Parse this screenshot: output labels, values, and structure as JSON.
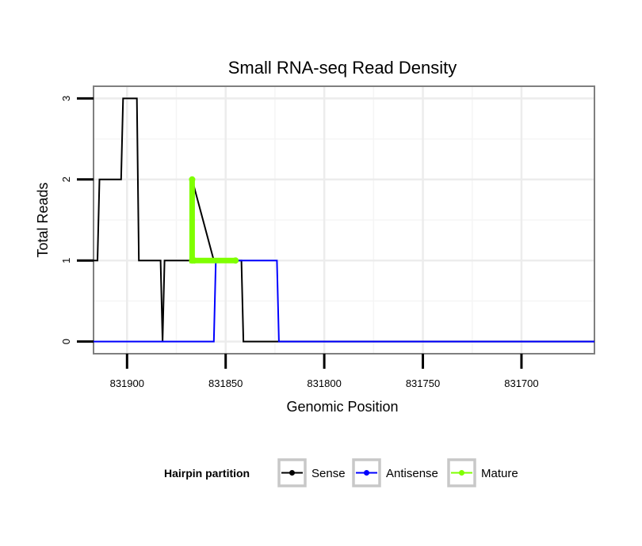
{
  "chart_data": {
    "type": "line",
    "title": "Small RNA-seq Read Density",
    "xlabel": "Genomic Position",
    "ylabel": "Total Reads",
    "x_reversed": true,
    "xlim": [
      831917,
      831663
    ],
    "ylim": [
      -0.15,
      3.15
    ],
    "x_ticks": [
      831900,
      831850,
      831800,
      831750,
      831700
    ],
    "x_tick_labels": [
      "831900",
      "831850",
      "831800",
      "831750",
      "831700"
    ],
    "y_ticks": [
      0,
      1,
      2,
      3
    ],
    "y_tick_labels": [
      "0",
      "1",
      "2",
      "3"
    ],
    "grid": true,
    "legend": {
      "title": "Hairpin partition",
      "position": "bottom",
      "entries": [
        {
          "name": "Sense",
          "color": "#000000"
        },
        {
          "name": "Antisense",
          "color": "#0000ff"
        },
        {
          "name": "Mature",
          "color": "#7fff00"
        }
      ]
    },
    "series": [
      {
        "name": "Sense",
        "color": "#000000",
        "x": [
          831917,
          831915,
          831914,
          831903,
          831902,
          831895,
          831894,
          831883,
          831882,
          831881,
          831868,
          831867,
          831856,
          831855,
          831854,
          831853,
          831842,
          831841,
          831824,
          831823,
          831663
        ],
        "y": [
          1,
          1,
          2,
          2,
          3,
          3,
          1,
          1,
          0,
          1,
          1,
          2,
          1,
          1,
          1,
          1,
          1,
          0,
          0,
          0,
          0
        ]
      },
      {
        "name": "Antisense",
        "color": "#0000ff",
        "x": [
          831917,
          831856,
          831855,
          831824,
          831823,
          831663
        ],
        "y": [
          0,
          0,
          1,
          1,
          0,
          0
        ]
      },
      {
        "name": "Mature",
        "color": "#7fff00",
        "x": [
          831867,
          831867,
          831866,
          831845
        ],
        "y": [
          2,
          1,
          1,
          1
        ]
      }
    ]
  }
}
